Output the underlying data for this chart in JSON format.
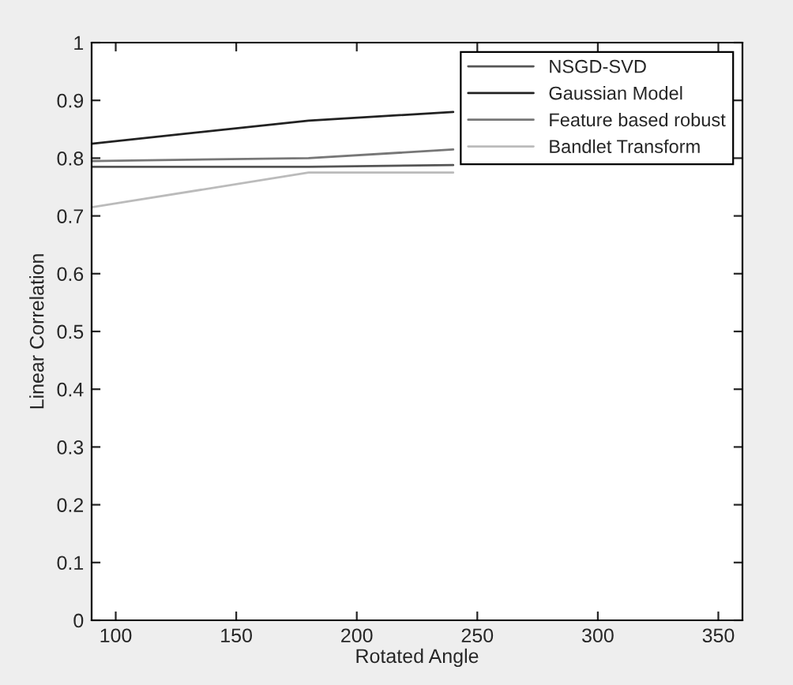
{
  "chart_data": {
    "type": "line",
    "xlabel": "Rotated Angle",
    "ylabel": "Linear Correlation",
    "x": [
      90,
      180,
      240
    ],
    "series": [
      {
        "name": "NSGD-SVD",
        "color": "#555555",
        "values": [
          0.785,
          0.785,
          0.788
        ]
      },
      {
        "name": "Gaussian Model",
        "color": "#222222",
        "values": [
          0.825,
          0.865,
          0.88
        ]
      },
      {
        "name": "Feature based robust",
        "color": "#777777",
        "values": [
          0.795,
          0.8,
          0.815
        ]
      },
      {
        "name": "Bandlet Transform",
        "color": "#bbbbbb",
        "values": [
          0.715,
          0.775,
          0.775
        ]
      }
    ],
    "xlim": [
      90,
      360
    ],
    "xticks": [
      100,
      150,
      200,
      250,
      300,
      350
    ],
    "ylim": [
      0,
      1
    ],
    "yticks": [
      0,
      0.1,
      0.2,
      0.3,
      0.4,
      0.5,
      0.6,
      0.7,
      0.8,
      0.9,
      1
    ],
    "grid": false,
    "legend": "top right",
    "marker": "none",
    "line_style": "solid"
  }
}
